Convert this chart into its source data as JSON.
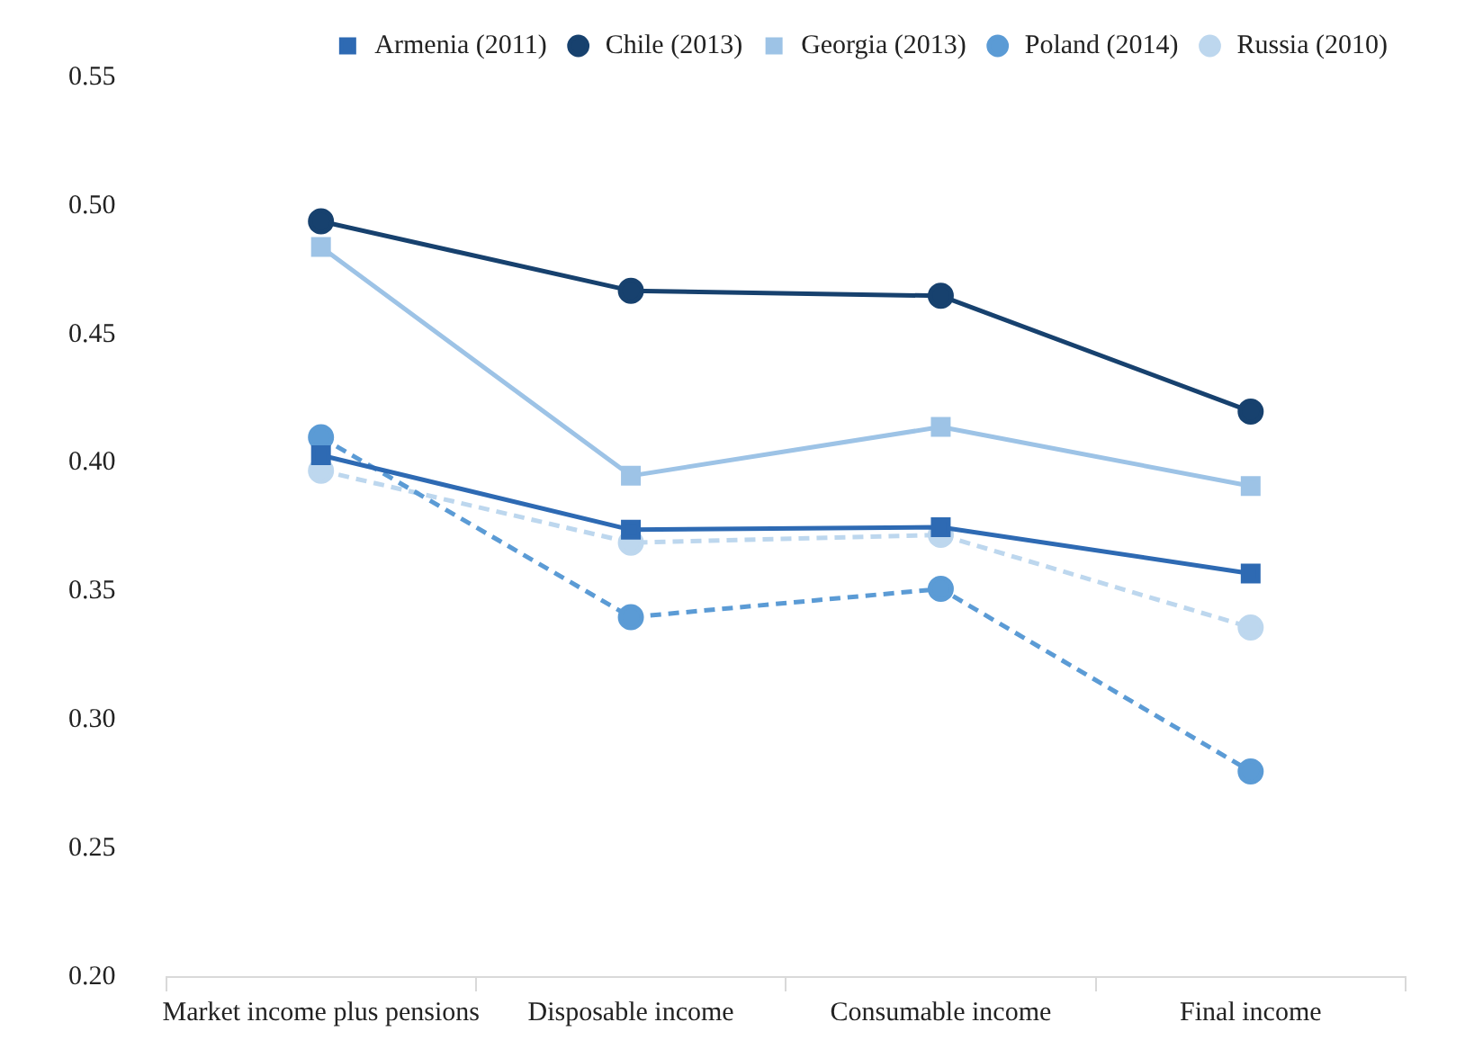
{
  "chart_data": {
    "type": "line",
    "categories": [
      "Market income plus pensions",
      "Disposable income",
      "Consumable income",
      "Final income"
    ],
    "series": [
      {
        "name": "Armenia (2011)",
        "color": "#2e6ab3",
        "marker": "square",
        "line_style": "solid",
        "values": [
          0.403,
          0.374,
          0.375,
          0.357
        ]
      },
      {
        "name": "Chile (2013)",
        "color": "#17416e",
        "marker": "circle",
        "line_style": "solid",
        "values": [
          0.494,
          0.467,
          0.465,
          0.42
        ]
      },
      {
        "name": "Georgia (2013)",
        "color": "#9dc3e6",
        "marker": "square",
        "line_style": "solid",
        "values": [
          0.484,
          0.395,
          0.414,
          0.391
        ]
      },
      {
        "name": "Poland (2014)",
        "color": "#5b9bd5",
        "marker": "circle",
        "line_style": "dashed",
        "values": [
          0.41,
          0.34,
          0.351,
          0.28
        ]
      },
      {
        "name": "Russia (2010)",
        "color": "#bdd7ee",
        "marker": "circle",
        "line_style": "dashed",
        "values": [
          0.397,
          0.369,
          0.372,
          0.336
        ]
      }
    ],
    "ylim": [
      0.2,
      0.55
    ],
    "yticks": [
      {
        "value": 0.2,
        "label": "0.20"
      },
      {
        "value": 0.25,
        "label": "0.25"
      },
      {
        "value": 0.3,
        "label": "0.30"
      },
      {
        "value": 0.35,
        "label": "0.35"
      },
      {
        "value": 0.4,
        "label": "0.40"
      },
      {
        "value": 0.45,
        "label": "0.45"
      },
      {
        "value": 0.5,
        "label": "0.50"
      },
      {
        "value": 0.55,
        "label": "0.55"
      }
    ],
    "grid": false,
    "legend": "top"
  }
}
